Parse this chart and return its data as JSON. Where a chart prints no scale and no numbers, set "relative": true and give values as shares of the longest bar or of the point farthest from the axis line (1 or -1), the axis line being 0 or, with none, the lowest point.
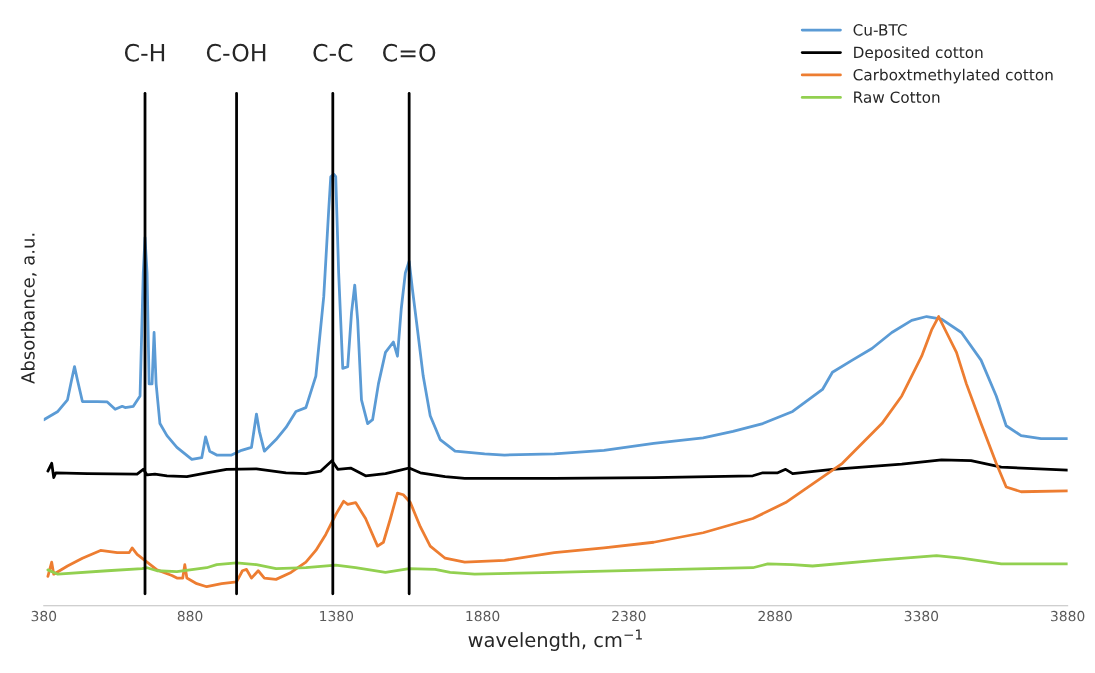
{
  "chart_data": {
    "type": "line",
    "relative": true,
    "xlabel": "wavelength, cm$^{−1}$",
    "ylabel": "Absorbance, a.u.",
    "xlim": [
      380,
      3880
    ],
    "xticks": [
      380,
      880,
      1380,
      1880,
      2380,
      2880,
      3380,
      3880
    ],
    "grid": false,
    "legend": "top right",
    "marker": "none",
    "line_style": "solid",
    "ref_lines": [
      {
        "axis": "x",
        "value": 726,
        "label": "C-H",
        "color": "#000000"
      },
      {
        "axis": "x",
        "value": 1039,
        "label": "C-OH",
        "color": "#000000"
      },
      {
        "axis": "x",
        "value": 1368,
        "label": "C-C",
        "color": "#000000"
      },
      {
        "axis": "x",
        "value": 1629,
        "label": "C=O",
        "color": "#000000"
      }
    ],
    "series": [
      {
        "name": "Cu-BTC",
        "color": "#5b9bd5",
        "x": [
          380,
          428,
          461,
          475,
          485,
          495,
          512,
          563,
          597,
          624,
          648,
          658,
          686,
          709,
          720,
          726,
          733,
          740,
          750,
          757,
          764,
          777,
          801,
          835,
          886,
          920,
          933,
          947,
          971,
          1022,
          1056,
          1090,
          1107,
          1117,
          1134,
          1174,
          1208,
          1242,
          1276,
          1310,
          1337,
          1354,
          1361,
          1371,
          1378,
          1388,
          1402,
          1419,
          1432,
          1443,
          1453,
          1466,
          1487,
          1504,
          1524,
          1548,
          1575,
          1589,
          1602,
          1616,
          1629,
          1640,
          1657,
          1677,
          1701,
          1735,
          1786,
          1887,
          1955,
          2125,
          2295,
          2465,
          2634,
          2736,
          2838,
          2940,
          3042,
          3076,
          3144,
          3211,
          3279,
          3347,
          3398,
          3449,
          3517,
          3584,
          3636,
          3670,
          3721,
          3789,
          3880
        ],
        "values": [
          0.431,
          0.45,
          0.477,
          0.523,
          0.554,
          0.523,
          0.473,
          0.473,
          0.472,
          0.455,
          0.462,
          0.459,
          0.462,
          0.486,
          0.771,
          0.853,
          0.771,
          0.514,
          0.514,
          0.633,
          0.514,
          0.422,
          0.394,
          0.367,
          0.339,
          0.343,
          0.391,
          0.358,
          0.349,
          0.349,
          0.36,
          0.367,
          0.444,
          0.404,
          0.358,
          0.385,
          0.413,
          0.45,
          0.459,
          0.532,
          0.716,
          0.917,
          0.994,
          1.0,
          0.994,
          0.771,
          0.55,
          0.554,
          0.679,
          0.743,
          0.661,
          0.477,
          0.422,
          0.431,
          0.514,
          0.587,
          0.611,
          0.578,
          0.688,
          0.771,
          0.798,
          0.734,
          0.642,
          0.532,
          0.44,
          0.385,
          0.358,
          0.352,
          0.349,
          0.352,
          0.36,
          0.376,
          0.389,
          0.404,
          0.422,
          0.45,
          0.501,
          0.541,
          0.569,
          0.596,
          0.633,
          0.661,
          0.67,
          0.664,
          0.633,
          0.569,
          0.486,
          0.417,
          0.394,
          0.387,
          0.387
        ]
      },
      {
        "name": "Deposited cotton",
        "color": "#000000",
        "x": [
          394,
          407,
          414,
          421,
          529,
          699,
          720,
          733,
          760,
          801,
          869,
          937,
          1005,
          1107,
          1208,
          1276,
          1327,
          1365,
          1385,
          1429,
          1480,
          1548,
          1599,
          1629,
          1667,
          1752,
          1819,
          2125,
          2465,
          2804,
          2838,
          2889,
          2916,
          2940,
          3076,
          3313,
          3449,
          3550,
          3653,
          3880
        ],
        "values": [
          0.312,
          0.33,
          0.297,
          0.308,
          0.306,
          0.305,
          0.316,
          0.303,
          0.305,
          0.301,
          0.299,
          0.308,
          0.316,
          0.317,
          0.308,
          0.306,
          0.312,
          0.336,
          0.316,
          0.319,
          0.301,
          0.306,
          0.314,
          0.319,
          0.308,
          0.299,
          0.295,
          0.295,
          0.297,
          0.301,
          0.308,
          0.308,
          0.316,
          0.306,
          0.316,
          0.328,
          0.338,
          0.336,
          0.321,
          0.314
        ]
      },
      {
        "name": "Carboxtmethylated cotton",
        "color": "#ed7d31",
        "x": [
          394,
          407,
          414,
          461,
          512,
          574,
          631,
          672,
          682,
          699,
          733,
          767,
          818,
          835,
          855,
          862,
          869,
          903,
          937,
          988,
          1039,
          1059,
          1073,
          1090,
          1113,
          1134,
          1174,
          1225,
          1276,
          1310,
          1344,
          1378,
          1405,
          1419,
          1446,
          1480,
          1521,
          1541,
          1565,
          1589,
          1609,
          1633,
          1667,
          1701,
          1752,
          1819,
          1955,
          2125,
          2295,
          2465,
          2634,
          2804,
          2916,
          2974,
          3110,
          3245,
          3313,
          3381,
          3415,
          3439,
          3466,
          3500,
          3534,
          3584,
          3636,
          3670,
          3721,
          3880
        ],
        "values": [
          0.068,
          0.101,
          0.073,
          0.092,
          0.11,
          0.128,
          0.123,
          0.123,
          0.134,
          0.119,
          0.101,
          0.083,
          0.07,
          0.064,
          0.064,
          0.095,
          0.064,
          0.051,
          0.044,
          0.051,
          0.055,
          0.081,
          0.084,
          0.064,
          0.081,
          0.064,
          0.061,
          0.077,
          0.101,
          0.128,
          0.165,
          0.211,
          0.242,
          0.235,
          0.239,
          0.202,
          0.138,
          0.147,
          0.202,
          0.261,
          0.257,
          0.239,
          0.183,
          0.138,
          0.11,
          0.101,
          0.105,
          0.123,
          0.134,
          0.147,
          0.169,
          0.202,
          0.239,
          0.266,
          0.33,
          0.422,
          0.486,
          0.578,
          0.639,
          0.67,
          0.633,
          0.587,
          0.514,
          0.422,
          0.33,
          0.275,
          0.264,
          0.266
        ]
      },
      {
        "name": "Raw Cotton",
        "color": "#92d050",
        "x": [
          394,
          428,
          597,
          716,
          733,
          767,
          835,
          937,
          971,
          1039,
          1107,
          1174,
          1276,
          1378,
          1446,
          1548,
          1629,
          1718,
          1769,
          1853,
          2125,
          2465,
          2804,
          2855,
          2940,
          3008,
          3245,
          3432,
          3517,
          3653,
          3880
        ],
        "values": [
          0.083,
          0.073,
          0.081,
          0.086,
          0.088,
          0.081,
          0.079,
          0.088,
          0.095,
          0.099,
          0.095,
          0.086,
          0.088,
          0.094,
          0.088,
          0.077,
          0.086,
          0.084,
          0.077,
          0.073,
          0.077,
          0.083,
          0.088,
          0.097,
          0.095,
          0.092,
          0.106,
          0.116,
          0.11,
          0.097,
          0.097
        ]
      }
    ]
  }
}
